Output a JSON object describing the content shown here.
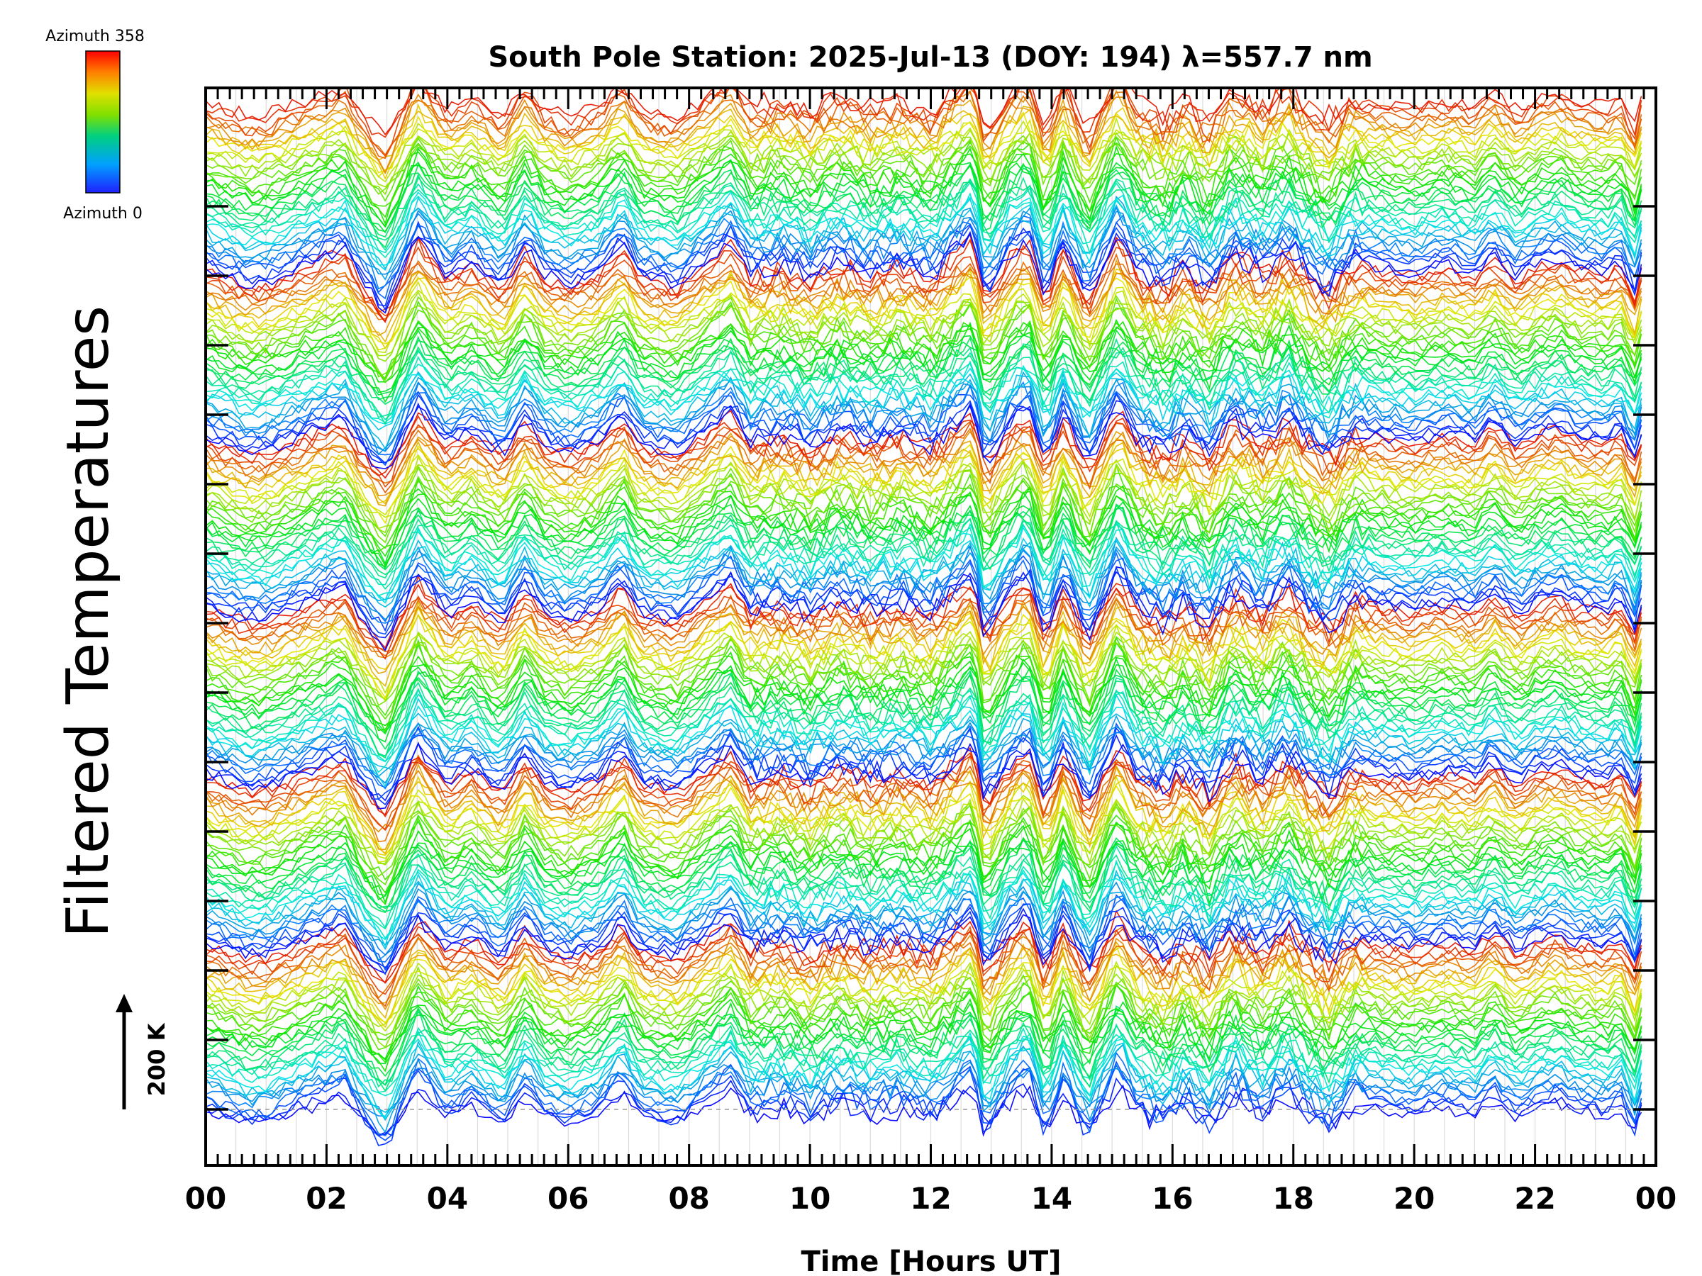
{
  "chart_data": {
    "type": "line",
    "title": "South Pole Station: 2025-Jul-13 (DOY: 194) λ=557.7 nm",
    "xlabel": "Time [Hours UT]",
    "ylabel": "Filtered Temperatures",
    "xlim": [
      0,
      24
    ],
    "x_ticks": [
      "00",
      "02",
      "04",
      "06",
      "08",
      "10",
      "12",
      "14",
      "16",
      "18",
      "20",
      "22",
      "00"
    ],
    "grid": true,
    "colorbar": {
      "top_label": "Azimuth 358",
      "bottom_label": "Azimuth 0",
      "colormap": "rainbow",
      "colors": [
        "#2020ff",
        "#00a0ff",
        "#00d080",
        "#80e000",
        "#e0e000",
        "#ff8000",
        "#ff0000"
      ]
    },
    "scale_bar": {
      "label": "200 K",
      "value_k": 200
    },
    "series_count": 240,
    "stack_groups": 6,
    "note": "Stacked filtered temperature traces, one per azimuth (0–358°), colored blue→green→yellow→red by azimuth and repeated in vertically offset groups."
  }
}
